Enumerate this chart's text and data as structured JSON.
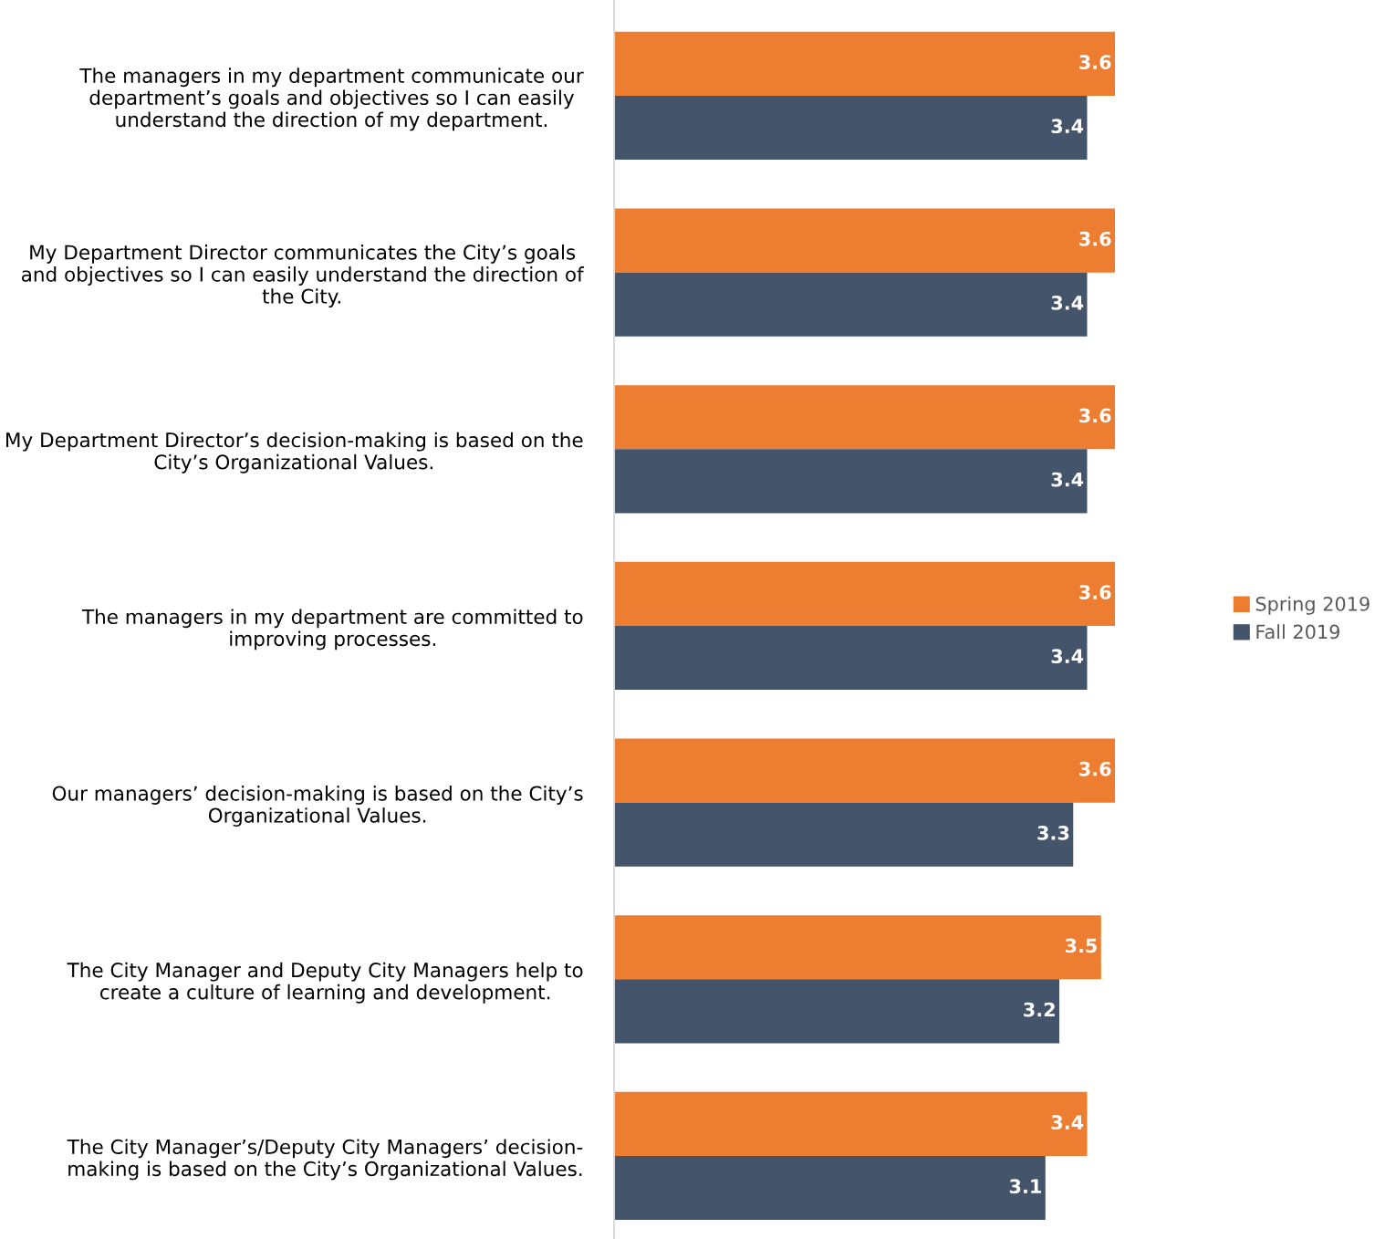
{
  "chart_data": {
    "type": "bar",
    "orientation": "horizontal",
    "categories": [
      "The managers in my department communicate our\ndepartment’s goals and objectives so I can easily\nunderstand the direction of my department.",
      "My Department Director communicates the City’s goals\nand objectives so I can easily understand the direction of\nthe City.",
      "My Department Director’s decision-making is based on the\nCity’s Organizational Values.",
      "The managers in my department are committed to\nimproving processes.",
      "Our managers’ decision-making is based on the City’s\nOrganizational Values.",
      "The City Manager and Deputy City Managers help to\ncreate a culture of learning and development.",
      "The City Manager’s/Deputy City Managers’ decision-\nmaking is based on the City’s Organizational Values."
    ],
    "series": [
      {
        "name": "Spring 2019",
        "color": "#ed7d31",
        "values": [
          3.6,
          3.6,
          3.6,
          3.6,
          3.6,
          3.5,
          3.4
        ]
      },
      {
        "name": "Fall 2019",
        "color": "#44546a",
        "values": [
          3.4,
          3.4,
          3.4,
          3.4,
          3.3,
          3.2,
          3.1
        ]
      }
    ],
    "tick_labels": "y",
    "data_labels": true,
    "grid": false,
    "legend": "right"
  }
}
